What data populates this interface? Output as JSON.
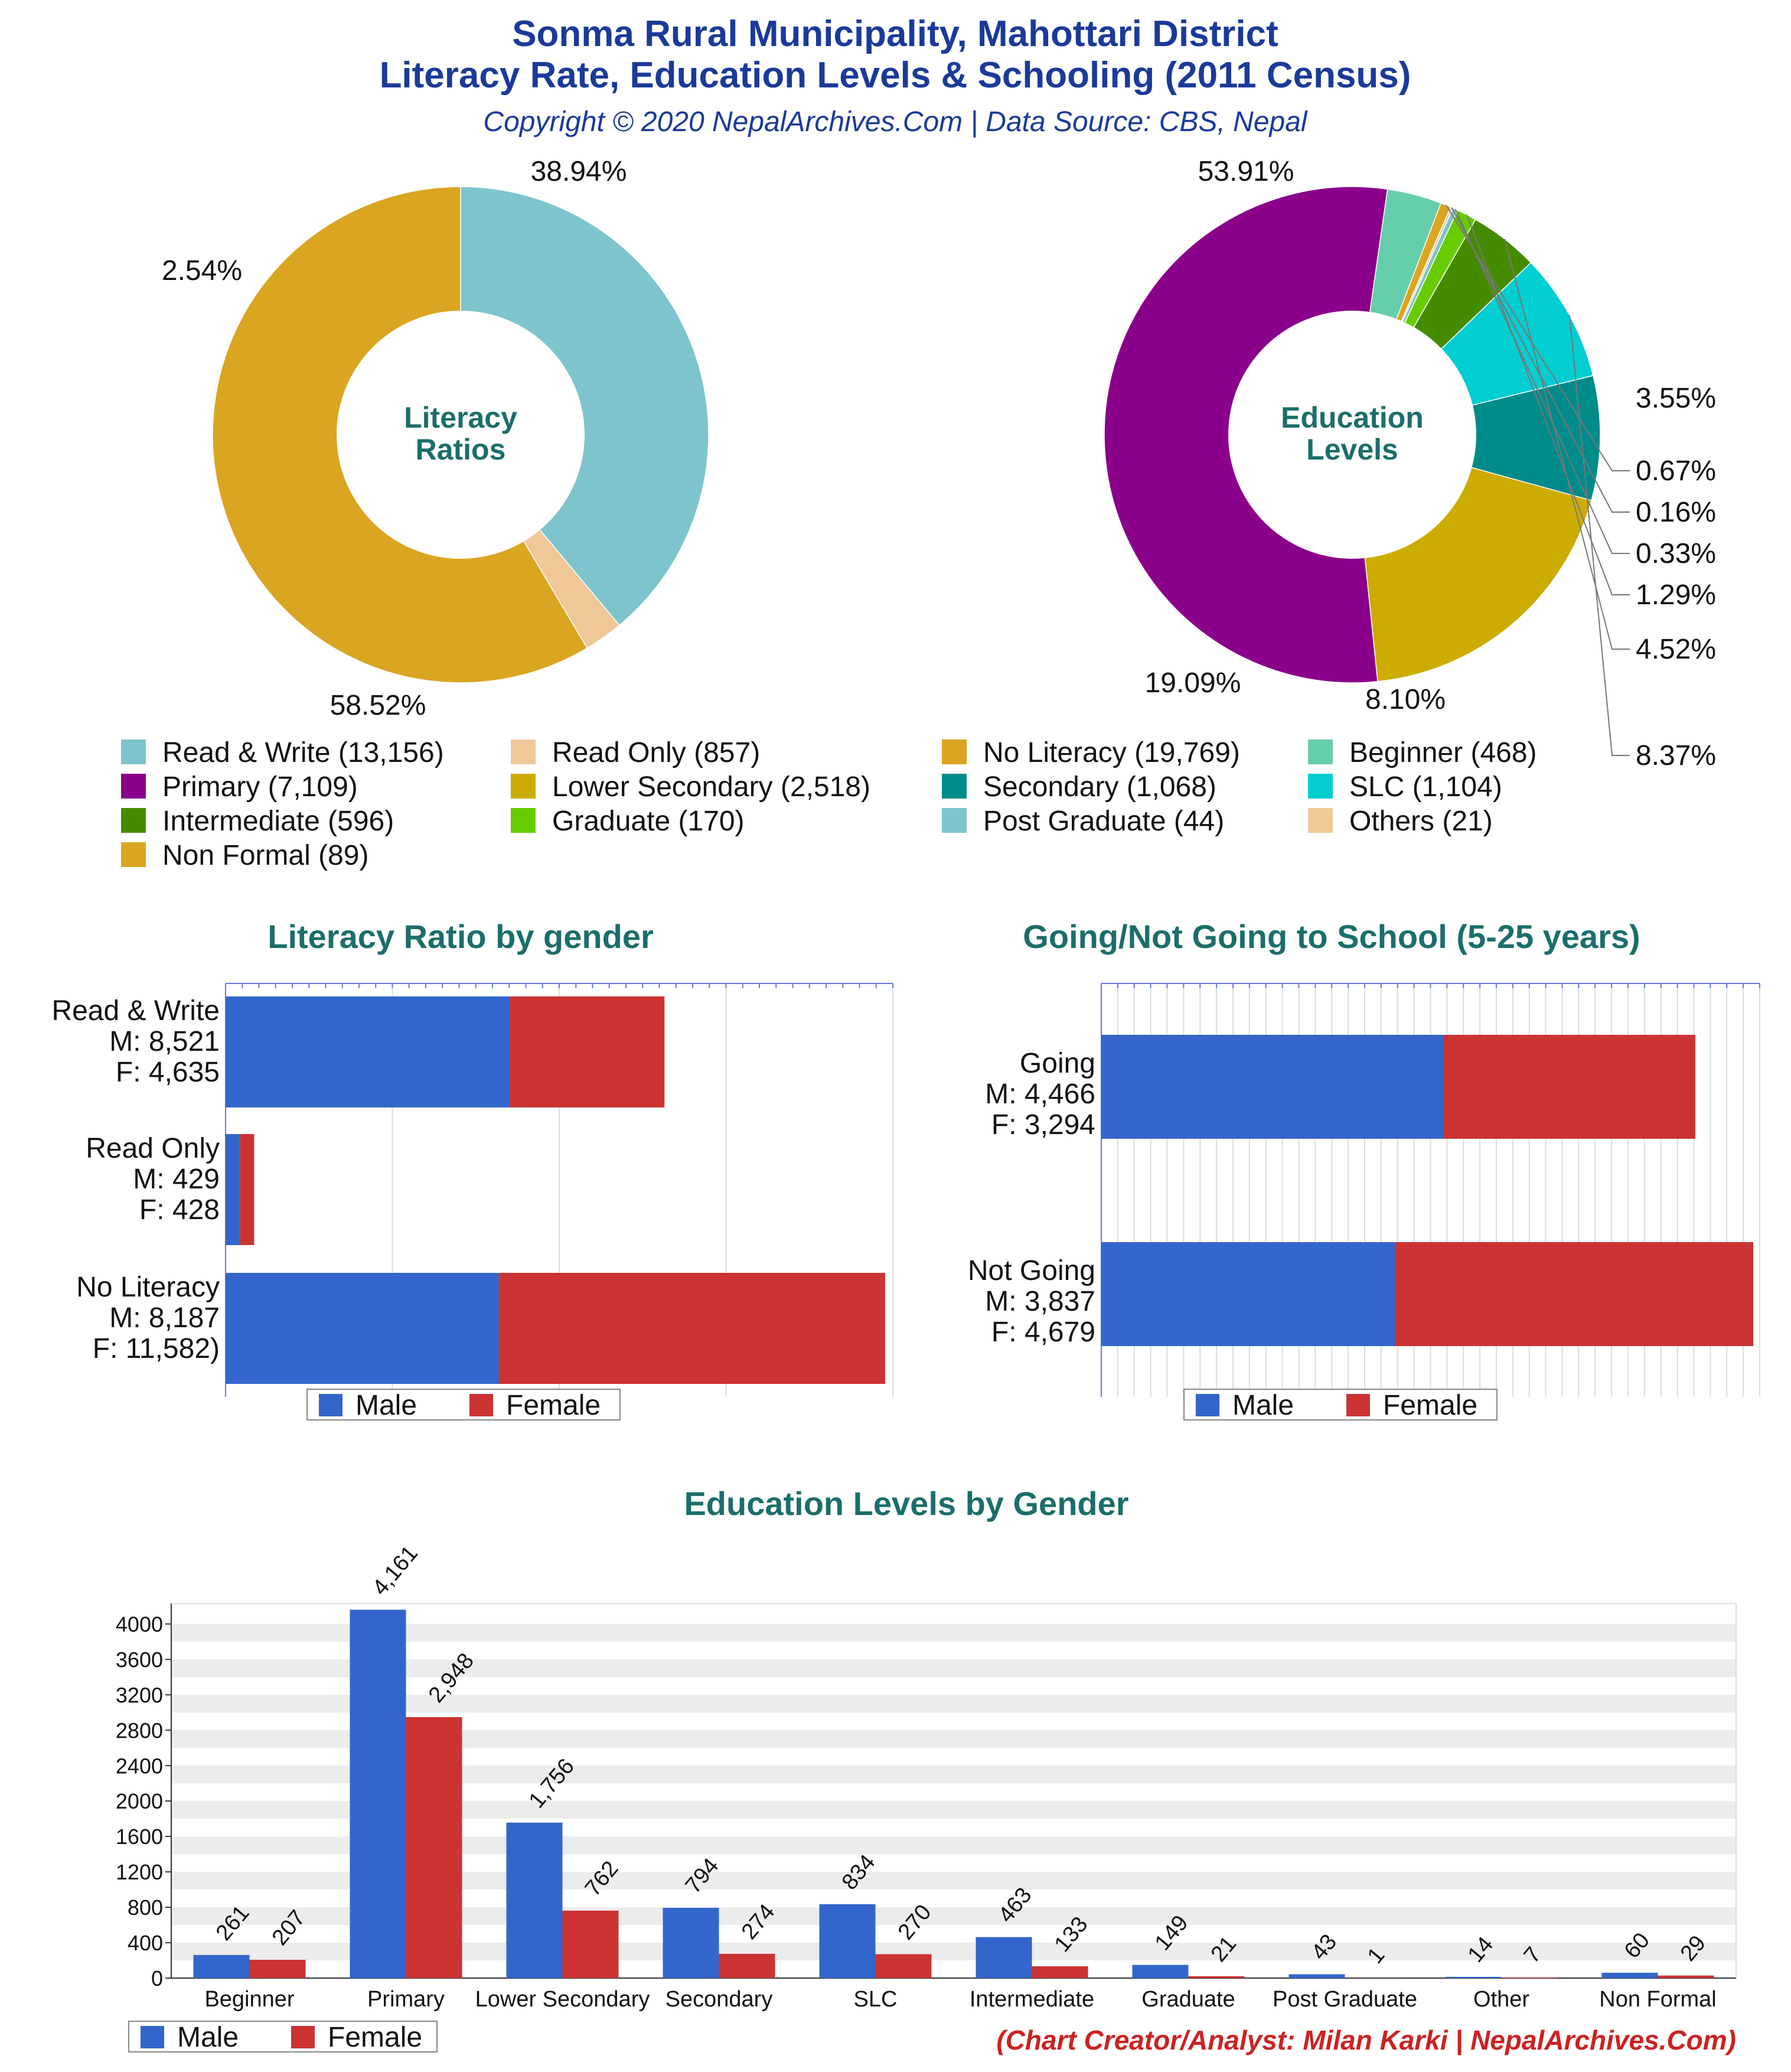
{
  "header": {
    "title_line1": "Sonma Rural Municipality, Mahottari District",
    "title_line2": "Literacy Rate, Education Levels & Schooling (2011 Census)",
    "copyright": "Copyright © 2020 NepalArchives.Com | Data Source: CBS, Nepal"
  },
  "footer": {
    "credit": "(Chart Creator/Analyst: Milan Karki | NepalArchives.Com)"
  },
  "colors": {
    "title_blue": "#1a3a9a",
    "section_teal": "#1b6e6a",
    "male": "#3366cc",
    "female": "#cc3333",
    "credit_red": "#cc2222"
  },
  "chart_data": [
    {
      "id": "literacy-ratios",
      "type": "pie",
      "center_label": [
        "Literacy",
        "Ratios"
      ],
      "slices": [
        {
          "label": "Read & Write",
          "value": 13156,
          "percent_label": "38.94%",
          "color": "#7ec4cc"
        },
        {
          "label": "Read Only",
          "value": 857,
          "percent_label": "2.54%",
          "color": "#f0c898"
        },
        {
          "label": "No Literacy",
          "value": 19769,
          "percent_label": "58.52%",
          "color": "#daa520"
        }
      ]
    },
    {
      "id": "education-levels",
      "type": "pie",
      "center_label": [
        "Education",
        "Levels"
      ],
      "slices": [
        {
          "label": "Primary",
          "value": 7109,
          "percent_label": "53.91%",
          "color": "#8b008b"
        },
        {
          "label": "Beginner",
          "value": 468,
          "percent_label": "3.55%",
          "color": "#66cdaa"
        },
        {
          "label": "Non Formal",
          "value": 89,
          "percent_label": "0.67%",
          "color": "#daa520"
        },
        {
          "label": "Others",
          "value": 21,
          "percent_label": "0.16%",
          "color": "#f0c898"
        },
        {
          "label": "Post Graduate",
          "value": 44,
          "percent_label": "0.33%",
          "color": "#7ec4cc"
        },
        {
          "label": "Graduate",
          "value": 170,
          "percent_label": "1.29%",
          "color": "#66cc00"
        },
        {
          "label": "Intermediate",
          "value": 596,
          "percent_label": "4.52%",
          "color": "#458b00"
        },
        {
          "label": "SLC",
          "value": 1104,
          "percent_label": "8.37%",
          "color": "#00ced1"
        },
        {
          "label": "Secondary",
          "value": 1068,
          "percent_label": "8.10%",
          "color": "#008b8b"
        },
        {
          "label": "Lower Secondary",
          "value": 2518,
          "percent_label": "19.09%",
          "color": "#ccac00"
        }
      ],
      "legend": [
        {
          "text": "Read & Write (13,156)",
          "color": "#7ec4cc"
        },
        {
          "text": "Read Only (857)",
          "color": "#f0c898"
        },
        {
          "text": "No Literacy (19,769)",
          "color": "#daa520"
        },
        {
          "text": "Beginner (468)",
          "color": "#66cdaa"
        },
        {
          "text": "Primary (7,109)",
          "color": "#8b008b"
        },
        {
          "text": "Lower Secondary (2,518)",
          "color": "#ccac00"
        },
        {
          "text": "Secondary (1,068)",
          "color": "#008b8b"
        },
        {
          "text": "SLC (1,104)",
          "color": "#00ced1"
        },
        {
          "text": "Intermediate (596)",
          "color": "#458b00"
        },
        {
          "text": "Graduate (170)",
          "color": "#66cc00"
        },
        {
          "text": "Post Graduate (44)",
          "color": "#7ec4cc"
        },
        {
          "text": "Others (21)",
          "color": "#f0c898"
        },
        {
          "text": "Non Formal (89)",
          "color": "#daa520"
        }
      ]
    },
    {
      "id": "literacy-by-gender",
      "type": "bar",
      "orientation": "horizontal",
      "stacked": true,
      "title": "Literacy Ratio by gender",
      "xlim": [
        0,
        20000
      ],
      "categories": [
        {
          "lines": [
            "Read & Write",
            "M: 8,521",
            "F: 4,635"
          ]
        },
        {
          "lines": [
            "Read Only",
            "M: 429",
            "F: 428"
          ]
        },
        {
          "lines": [
            "No Literacy",
            "M: 8,187",
            "F: 11,582)"
          ]
        }
      ],
      "series": [
        {
          "name": "Male",
          "values": [
            8521,
            429,
            8187
          ]
        },
        {
          "name": "Female",
          "values": [
            4635,
            428,
            11582
          ]
        }
      ]
    },
    {
      "id": "school-going",
      "type": "bar",
      "orientation": "horizontal",
      "stacked": true,
      "title": "Going/Not Going to School (5-25 years)",
      "xlim": [
        0,
        8600
      ],
      "categories": [
        {
          "lines": [
            "Going",
            "M: 4,466",
            "F: 3,294"
          ]
        },
        {
          "lines": [
            "Not Going",
            "M: 3,837",
            "F: 4,679"
          ]
        }
      ],
      "series": [
        {
          "name": "Male",
          "values": [
            4466,
            3837
          ]
        },
        {
          "name": "Female",
          "values": [
            3294,
            4679
          ]
        }
      ]
    },
    {
      "id": "education-by-gender",
      "type": "bar",
      "orientation": "vertical",
      "title": "Education Levels by Gender",
      "ylim": [
        0,
        4000
      ],
      "yticks": [
        0,
        400,
        800,
        1200,
        1600,
        2000,
        2400,
        2800,
        3200,
        3600,
        4000
      ],
      "categories": [
        "Beginner",
        "Primary",
        "Lower Secondary",
        "Secondary",
        "SLC",
        "Intermediate",
        "Graduate",
        "Post Graduate",
        "Other",
        "Non Formal"
      ],
      "series": [
        {
          "name": "Male",
          "values": [
            261,
            4161,
            1756,
            794,
            834,
            463,
            149,
            43,
            14,
            60
          ],
          "labels": [
            "261",
            "4,161",
            "1,756",
            "794",
            "834",
            "463",
            "149",
            "43",
            "14",
            "60"
          ]
        },
        {
          "name": "Female",
          "values": [
            207,
            2948,
            762,
            274,
            270,
            133,
            21,
            1,
            7,
            29
          ],
          "labels": [
            "207",
            "2,948",
            "762",
            "274",
            "270",
            "133",
            "21",
            "1",
            "7",
            "29"
          ]
        }
      ]
    }
  ]
}
